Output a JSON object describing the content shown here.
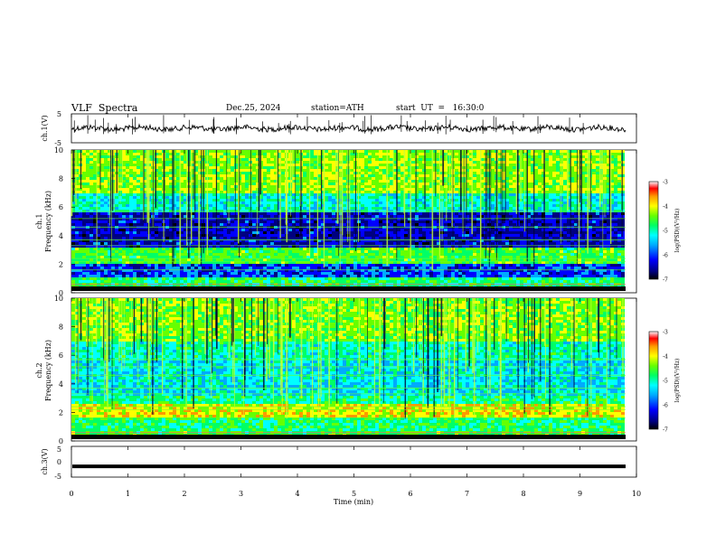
{
  "header": {
    "title": "VLF  Spectra",
    "date": "Dec.25, 2024",
    "station": "station=ATH",
    "start_ut": "start  UT  =   16:30:0"
  },
  "chart_data": [
    {
      "name": "ch1-waveform",
      "type": "line",
      "ylabel": "ch.1(V)",
      "ylim": [
        -5,
        5
      ],
      "yticks": [
        "5",
        "-5"
      ],
      "xlim": [
        0,
        10
      ]
    },
    {
      "name": "ch1-spectrogram",
      "type": "heatmap",
      "ylabel": "ch.1\nFrequency  (kHz)",
      "ylabel_line1": "ch.1",
      "ylabel_line2": "Frequency  (kHz)",
      "ylim": [
        0,
        10
      ],
      "yticks": [
        "0",
        "2",
        "4",
        "6",
        "8",
        "10"
      ],
      "xlim": [
        0,
        10
      ],
      "colorbar": {
        "label": "log(PSD)(V²/Hz)",
        "range": [
          -7,
          -3
        ],
        "ticks": [
          "-3",
          "-4",
          "-5",
          "-6",
          "-7"
        ]
      }
    },
    {
      "name": "ch2-spectrogram",
      "type": "heatmap",
      "ylabel_line1": "ch.2",
      "ylabel_line2": "Frequency  (kHz)",
      "ylim": [
        0,
        10
      ],
      "yticks": [
        "0",
        "2",
        "4",
        "6",
        "8",
        "10"
      ],
      "xlim": [
        0,
        10
      ],
      "colorbar": {
        "label": "log(PSD)(V²/Hz)",
        "range": [
          -7,
          -3
        ],
        "ticks": [
          "-3",
          "-4",
          "-5",
          "-6",
          "-7"
        ]
      }
    },
    {
      "name": "ch3-waveform",
      "type": "line",
      "ylabel": "ch.3(V)",
      "ylim": [
        -5,
        5
      ],
      "yticks": [
        "5",
        "0",
        "-5"
      ],
      "xlim": [
        0,
        10
      ],
      "xlabel": "Time  (min)",
      "xticks": [
        "0",
        "1",
        "2",
        "3",
        "4",
        "5",
        "6",
        "7",
        "8",
        "9",
        "10"
      ],
      "values_constant": -1.5
    }
  ],
  "colors": {
    "colormap": [
      "#000000",
      "#000080",
      "#0000ff",
      "#00aaff",
      "#00ffff",
      "#00ff66",
      "#66ff00",
      "#ffff00",
      "#ff9900",
      "#ff0000",
      "#ffffff"
    ],
    "trace": "#000000"
  }
}
